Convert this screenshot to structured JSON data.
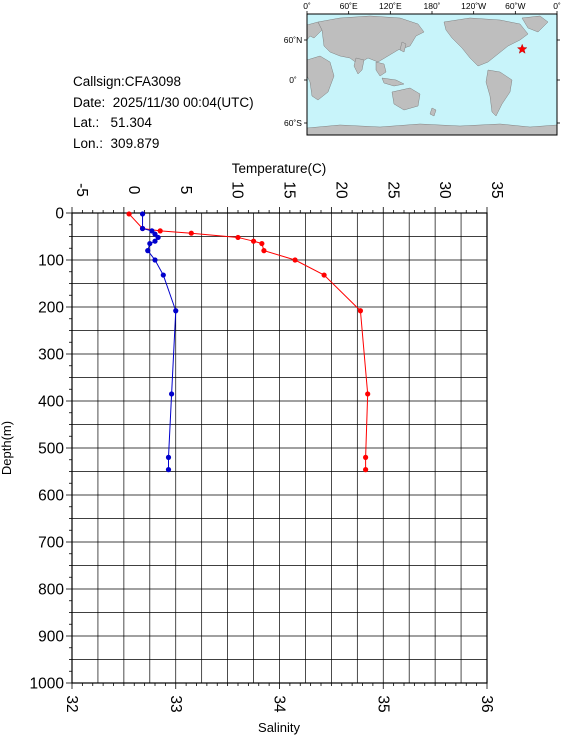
{
  "station": {
    "callsign": "Callsign:CFA3098",
    "date_label": "Date:",
    "date_value": "2025/11/30 00:04(UTC)",
    "lat_label": "Lat.:",
    "lat_value": "51.304",
    "lon_label": "Lon.:",
    "lon_value": "309.879"
  },
  "map": {
    "lon_ticks": [
      "0˚",
      "60˚E",
      "120˚E",
      "180˚",
      "120˚W",
      "60˚W",
      "0˚"
    ],
    "lat_ticks": [
      "60˚N",
      "0˚",
      "60˚S"
    ],
    "ocean_color": "#c8f4fa",
    "land_color": "#bebebe",
    "marker_color": "#ff0000",
    "marker_icon": "star-icon",
    "station_lon": 309.879,
    "station_lat": 51.304
  },
  "chart_data": {
    "type": "line",
    "title": "",
    "top_axis_label": "Temperature(C)",
    "bottom_axis_label": "Salinity",
    "ylabel": "Depth(m)",
    "temperature_range": [
      -5,
      35
    ],
    "temperature_ticks": [
      "-5",
      "0",
      "5",
      "10",
      "15",
      "20",
      "25",
      "30",
      "35"
    ],
    "salinity_range": [
      32,
      36
    ],
    "salinity_ticks": [
      "32",
      "33",
      "34",
      "35",
      "36"
    ],
    "depth_range": [
      0,
      1000
    ],
    "depth_ticks": [
      "0",
      "100",
      "200",
      "300",
      "400",
      "500",
      "600",
      "700",
      "800",
      "900",
      "1000"
    ],
    "y_inverted": true,
    "grid": true,
    "series": [
      {
        "name": "Temperature",
        "axis": "top",
        "color": "#ff0000",
        "points": [
          {
            "x": 0.5,
            "y": 2
          },
          {
            "x": 1.8,
            "y": 33
          },
          {
            "x": 3.5,
            "y": 38
          },
          {
            "x": 6.5,
            "y": 43
          },
          {
            "x": 11.0,
            "y": 52
          },
          {
            "x": 12.5,
            "y": 60
          },
          {
            "x": 13.3,
            "y": 65
          },
          {
            "x": 13.5,
            "y": 80
          },
          {
            "x": 16.5,
            "y": 100
          },
          {
            "x": 19.3,
            "y": 132
          },
          {
            "x": 22.8,
            "y": 208
          },
          {
            "x": 23.5,
            "y": 385
          },
          {
            "x": 23.3,
            "y": 520
          },
          {
            "x": 23.3,
            "y": 546
          }
        ]
      },
      {
        "name": "Salinity",
        "axis": "bottom",
        "color": "#0000cc",
        "points": [
          {
            "x": 32.68,
            "y": 2
          },
          {
            "x": 32.68,
            "y": 33
          },
          {
            "x": 32.77,
            "y": 38
          },
          {
            "x": 32.8,
            "y": 45
          },
          {
            "x": 32.83,
            "y": 52
          },
          {
            "x": 32.8,
            "y": 60
          },
          {
            "x": 32.75,
            "y": 65
          },
          {
            "x": 32.73,
            "y": 80
          },
          {
            "x": 32.8,
            "y": 100
          },
          {
            "x": 32.88,
            "y": 132
          },
          {
            "x": 33.0,
            "y": 208
          },
          {
            "x": 32.96,
            "y": 385
          },
          {
            "x": 32.93,
            "y": 520
          },
          {
            "x": 32.93,
            "y": 546
          }
        ]
      }
    ]
  }
}
